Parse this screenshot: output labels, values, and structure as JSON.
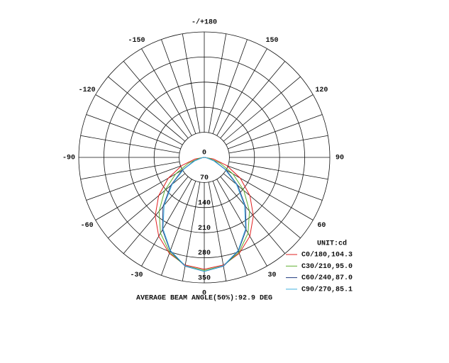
{
  "chart_data": {
    "type": "polar",
    "unit": "UNIT:cd",
    "caption": "AVERAGE BEAM ANGLE(50%):92.9 DEG",
    "rlim": [
      0,
      350
    ],
    "rticks": [
      0,
      70,
      140,
      210,
      280,
      350
    ],
    "angle_ticks": [
      {
        "value": 180,
        "label": "-/+180"
      },
      150,
      120,
      90,
      60,
      30,
      0,
      -30,
      -60,
      -90,
      -120,
      -150
    ],
    "angles": [
      -90,
      -80,
      -70,
      -60,
      -50,
      -40,
      -30,
      -20,
      -10,
      0,
      10,
      20,
      30,
      40,
      50,
      60,
      70,
      80,
      90
    ],
    "series": [
      {
        "name": "C0/180,104.3",
        "color": "#e02020",
        "values": [
          0,
          26,
          67,
          116,
          166,
          213,
          254,
          285,
          305,
          312,
          305,
          285,
          254,
          213,
          166,
          116,
          67,
          26,
          0
        ]
      },
      {
        "name": "C30/210,95.0",
        "color": "#60b030",
        "values": [
          0,
          14,
          47,
          92,
          144,
          196,
          244,
          282,
          307,
          315,
          307,
          282,
          244,
          196,
          144,
          92,
          47,
          14,
          0
        ]
      },
      {
        "name": "C60/240,87.0",
        "color": "#203a80",
        "values": [
          0,
          7,
          31,
          71,
          122,
          179,
          233,
          278,
          308,
          318,
          308,
          278,
          233,
          179,
          122,
          71,
          31,
          7,
          0
        ]
      },
      {
        "name": "C90/270,85.1",
        "color": "#40b0e0",
        "values": [
          0,
          6,
          28,
          66,
          117,
          174,
          230,
          276,
          307,
          318,
          307,
          276,
          230,
          174,
          117,
          66,
          28,
          6,
          0
        ]
      }
    ]
  }
}
